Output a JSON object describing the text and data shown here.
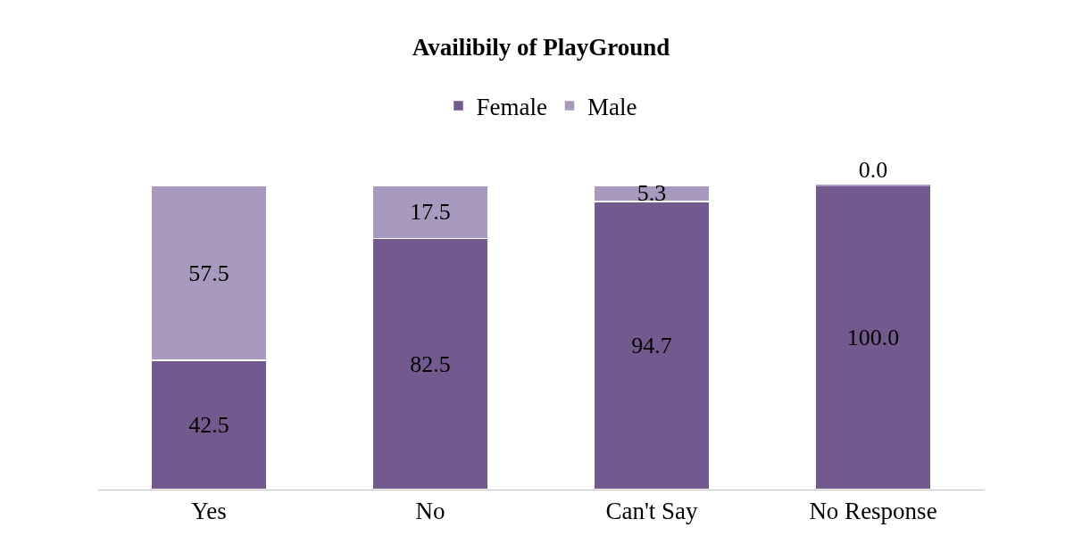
{
  "chart_data": {
    "type": "bar",
    "title": "Availibily of PlayGround",
    "categories": [
      "Yes",
      "No",
      "Can't Say",
      "No Response"
    ],
    "stacked": true,
    "legend": "top",
    "grid": false,
    "series": [
      {
        "name": "Female",
        "color": "#735a8e",
        "values": [
          42.5,
          82.5,
          94.7,
          100
        ],
        "value_labels": [
          "42.5",
          "82.5",
          "94.7",
          "100.0"
        ]
      },
      {
        "name": "Male",
        "color": "#a899bf",
        "values": [
          57.5,
          17.5,
          5.3,
          0
        ],
        "value_labels": [
          "57.5",
          "17.5",
          "5.3",
          "0.0"
        ]
      }
    ]
  }
}
